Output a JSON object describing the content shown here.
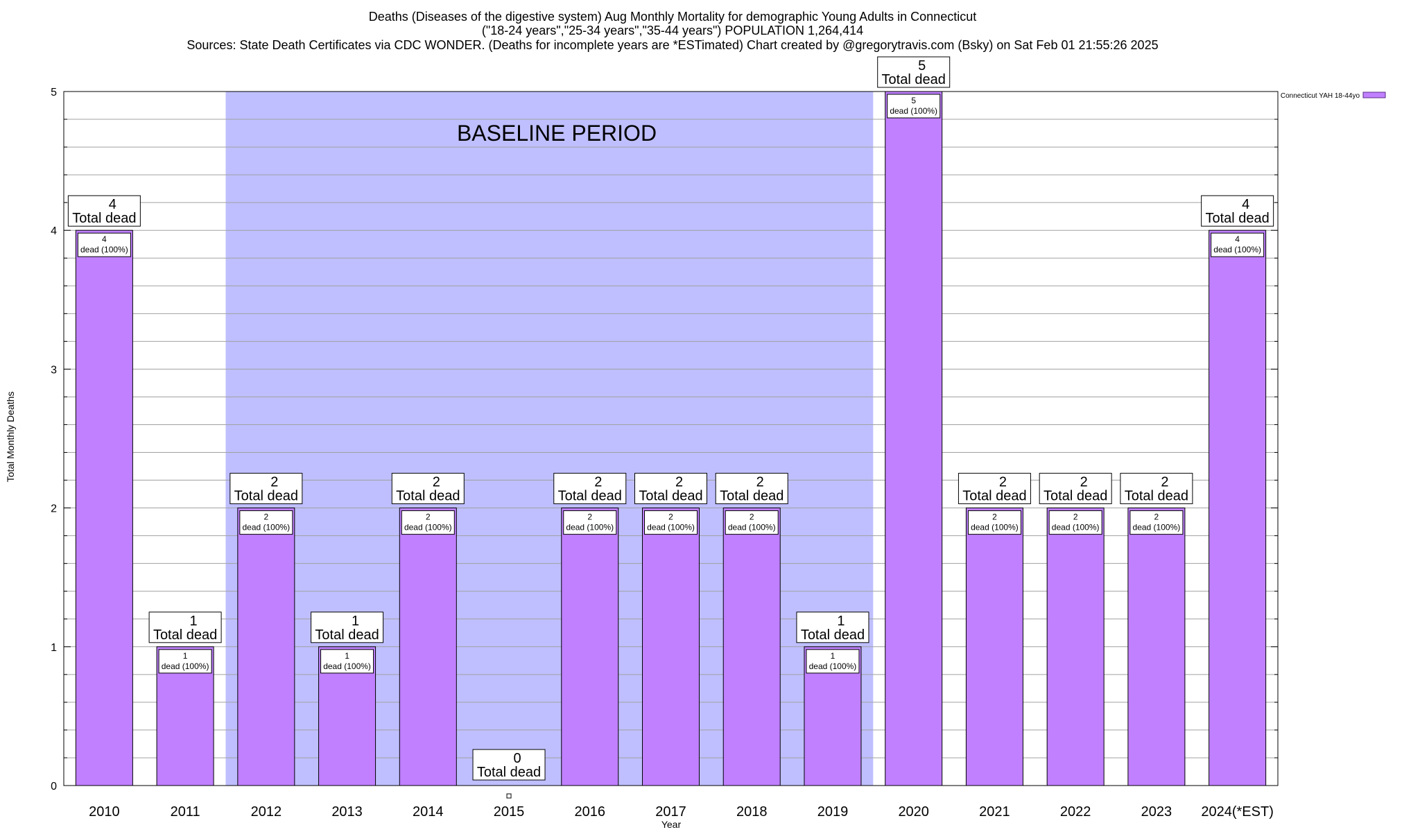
{
  "chart_data": {
    "type": "bar",
    "title_lines": [
      "Deaths (Diseases of the digestive system) Aug Monthly Mortality for demographic Young Adults in Connecticut",
      "(\"18-24 years\",\"25-34 years\",\"35-44 years\") POPULATION 1,264,414",
      "Sources: State Death Certificates via CDC WONDER. (Deaths for incomplete years are *ESTimated)                Chart created by @gregorytravis.com (Bsky) on Sat Feb 01 21:55:26 2025"
    ],
    "xlabel": "Year",
    "ylabel": "Total Monthly Deaths",
    "ylim": [
      0,
      5
    ],
    "y_ticks": [
      0,
      1,
      2,
      3,
      4,
      5
    ],
    "y_minor_step": 0.2,
    "grid": true,
    "categories": [
      "2010",
      "2011",
      "2012",
      "2013",
      "2014",
      "2015",
      "2016",
      "2017",
      "2018",
      "2019",
      "2020",
      "2021",
      "2022",
      "2023",
      "2024(*EST)"
    ],
    "series": [
      {
        "name": "Connecticut YAH 18-44yo",
        "color": "#c080ff",
        "values": [
          4,
          1,
          2,
          1,
          2,
          0,
          2,
          2,
          2,
          1,
          5,
          2,
          2,
          2,
          4
        ]
      }
    ],
    "total_label_suffix": "Total dead",
    "bar_label_suffix": "dead (100%)",
    "baseline": {
      "label": "BASELINE PERIOD",
      "from": "2012",
      "to": "2019",
      "color": "#bfbfff"
    },
    "legend_position": "top-right"
  }
}
